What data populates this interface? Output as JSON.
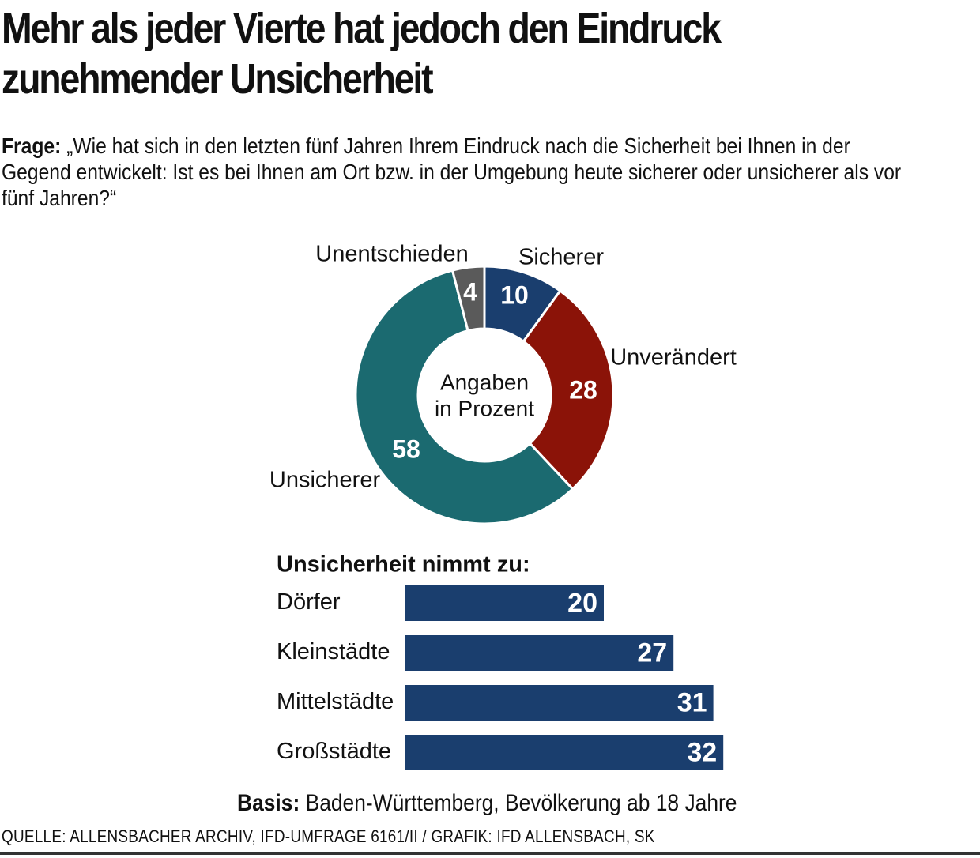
{
  "title_line1": "Mehr als jeder Vierte hat jedoch den Eindruck",
  "title_line2": "zunehmender Unsicherheit",
  "question_label": "Frage:",
  "question_text": "„Wie hat sich in den letzten fünf Jahren Ihrem Eindruck nach die Sicherheit bei Ihnen in der Gegend entwickelt: Ist es bei Ihnen am Ort bzw. in der Umgebung heute sicherer oder unsicherer als vor fünf Jahren?“",
  "basis_label": "Basis:",
  "basis_text": "Baden-Württemberg, Bevölkerung ab 18 Jahre",
  "source": "QUELLE: ALLENSBACHER ARCHIV, IFD-UMFRAGE 6161/II  / GRAFIK: IFD ALLENSBACH, SK",
  "chart_data": [
    {
      "type": "pie",
      "center_label_line1": "Angaben",
      "center_label_line2": "in Prozent",
      "categories": [
        "Sicherer",
        "Unverändert",
        "Unsicherer",
        "Unentschieden"
      ],
      "values": [
        10,
        28,
        58,
        4
      ],
      "colors": [
        "#1a3e6e",
        "#8b1308",
        "#1b6a70",
        "#5a5a5a"
      ]
    },
    {
      "type": "bar",
      "title": "Unsicherheit nimmt zu:",
      "categories": [
        "Dörfer",
        "Kleinstädte",
        "Mittelstädte",
        "Großstädte"
      ],
      "values": [
        20,
        27,
        31,
        32
      ],
      "color": "#1a3e6e"
    }
  ]
}
